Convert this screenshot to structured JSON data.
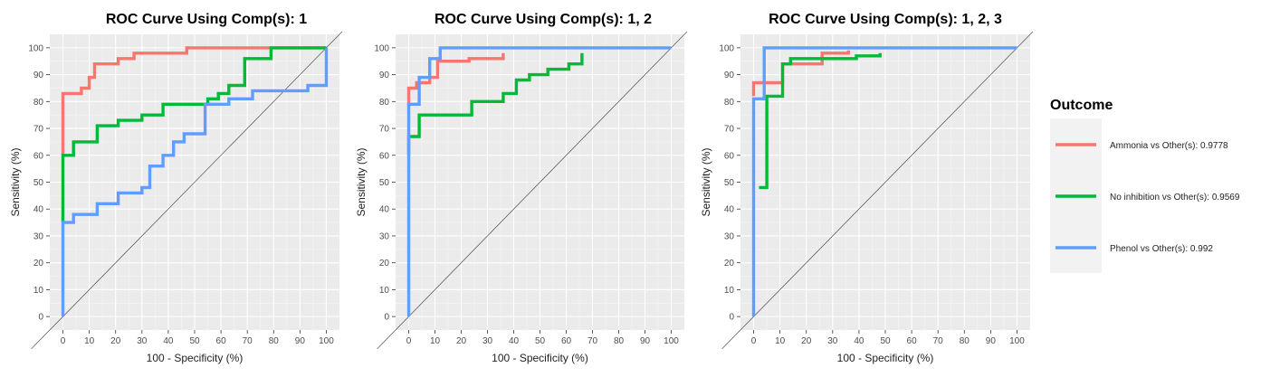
{
  "chart_data": [
    {
      "type": "line",
      "title": "ROC Curve Using Comp(s): 1",
      "xlabel": "100 - Specificity (%)",
      "ylabel": "Sensitivity (%)",
      "xlim": [
        0,
        100
      ],
      "ylim": [
        0,
        100
      ],
      "xticks": [
        0,
        10,
        20,
        30,
        40,
        50,
        60,
        70,
        80,
        90,
        100
      ],
      "yticks": [
        0,
        10,
        20,
        30,
        40,
        50,
        60,
        70,
        80,
        90,
        100
      ],
      "series": [
        {
          "name": "Ammonia vs Other(s): 0.9778",
          "color": "#F8766D",
          "x": [
            0,
            0,
            0,
            7,
            7,
            10,
            10,
            12,
            12,
            21,
            21,
            27,
            27,
            47,
            47,
            100
          ],
          "y": [
            60,
            60,
            83,
            83,
            85,
            85,
            89,
            89,
            94,
            94,
            96,
            96,
            98,
            98,
            100,
            100
          ]
        },
        {
          "name": "No inhibition vs Other(s): 0.9569",
          "color": "#00BA38",
          "x": [
            0,
            0,
            0,
            4,
            4,
            13,
            13,
            21,
            21,
            30,
            30,
            38,
            38,
            55,
            55,
            59,
            59,
            63,
            63,
            69,
            69,
            79,
            79,
            100
          ],
          "y": [
            35,
            35,
            60,
            60,
            65,
            65,
            71,
            71,
            73,
            73,
            75,
            75,
            79,
            79,
            81,
            81,
            83,
            83,
            86,
            86,
            96,
            96,
            100,
            100
          ]
        },
        {
          "name": "Phenol vs Other(s): 0.992",
          "color": "#619CFF",
          "x": [
            0,
            0,
            4,
            4,
            13,
            13,
            21,
            21,
            30,
            30,
            33,
            33,
            38,
            38,
            42,
            42,
            46,
            46,
            54,
            54,
            63,
            63,
            72,
            72,
            93,
            93,
            100,
            100
          ],
          "y": [
            0,
            35,
            35,
            38,
            38,
            42,
            42,
            46,
            46,
            48,
            48,
            56,
            56,
            60,
            60,
            65,
            65,
            68,
            68,
            79,
            79,
            81,
            81,
            84,
            84,
            86,
            86,
            100
          ]
        }
      ]
    },
    {
      "type": "line",
      "title": "ROC Curve Using Comp(s): 1, 2",
      "xlabel": "100 - Specificity (%)",
      "ylabel": "Sensitivity (%)",
      "xlim": [
        0,
        100
      ],
      "ylim": [
        0,
        100
      ],
      "xticks": [
        0,
        10,
        20,
        30,
        40,
        50,
        60,
        70,
        80,
        90,
        100
      ],
      "yticks": [
        0,
        10,
        20,
        30,
        40,
        50,
        60,
        70,
        80,
        90,
        100
      ],
      "series": [
        {
          "name": "Ammonia vs Other(s): 0.9778",
          "color": "#F8766D",
          "x": [
            0,
            0,
            3,
            3,
            8,
            8,
            11,
            11,
            23,
            23,
            36,
            36
          ],
          "y": [
            78,
            85,
            85,
            87,
            87,
            89,
            89,
            95,
            95,
            96,
            96,
            98
          ]
        },
        {
          "name": "No inhibition vs Other(s): 0.9569",
          "color": "#00BA38",
          "x": [
            0,
            0,
            4,
            4,
            24,
            24,
            36,
            36,
            41,
            41,
            46,
            46,
            53,
            53,
            61,
            61,
            66,
            66
          ],
          "y": [
            60,
            67,
            67,
            75,
            75,
            80,
            80,
            83,
            83,
            88,
            88,
            90,
            90,
            92,
            92,
            94,
            94,
            98
          ]
        },
        {
          "name": "Phenol vs Other(s): 0.992",
          "color": "#619CFF",
          "x": [
            0,
            0,
            4,
            4,
            8,
            8,
            12,
            12,
            100
          ],
          "y": [
            0,
            79,
            79,
            89,
            89,
            96,
            96,
            100,
            100
          ]
        }
      ]
    },
    {
      "type": "line",
      "title": "ROC Curve Using Comp(s): 1, 2, 3",
      "xlabel": "100 - Specificity (%)",
      "ylabel": "Sensitivity (%)",
      "xlim": [
        0,
        100
      ],
      "ylim": [
        0,
        100
      ],
      "xticks": [
        0,
        10,
        20,
        30,
        40,
        50,
        60,
        70,
        80,
        90,
        100
      ],
      "yticks": [
        0,
        10,
        20,
        30,
        40,
        50,
        60,
        70,
        80,
        90,
        100
      ],
      "series": [
        {
          "name": "Ammonia vs Other(s): 0.9778",
          "color": "#F8766D",
          "x": [
            0,
            0,
            11,
            11,
            26,
            26,
            36,
            36
          ],
          "y": [
            82,
            87,
            87,
            94,
            94,
            98,
            98,
            99
          ]
        },
        {
          "name": "No inhibition vs Other(s): 0.9569",
          "color": "#00BA38",
          "x": [
            2,
            2,
            5,
            5,
            11,
            11,
            14,
            14,
            39,
            39,
            48,
            48
          ],
          "y": [
            48,
            48,
            48,
            82,
            82,
            94,
            94,
            96,
            96,
            97,
            97,
            98
          ]
        },
        {
          "name": "Phenol vs Other(s): 0.992",
          "color": "#619CFF",
          "x": [
            0,
            0,
            4,
            4,
            100
          ],
          "y": [
            0,
            81,
            81,
            100,
            100
          ]
        }
      ]
    }
  ],
  "legend": {
    "title": "Outcome",
    "items": [
      {
        "label": "Ammonia vs Other(s): 0.9778",
        "color": "#F8766D"
      },
      {
        "label": "No inhibition vs Other(s): 0.9569",
        "color": "#00BA38"
      },
      {
        "label": "Phenol vs Other(s): 0.992",
        "color": "#619CFF"
      }
    ]
  }
}
